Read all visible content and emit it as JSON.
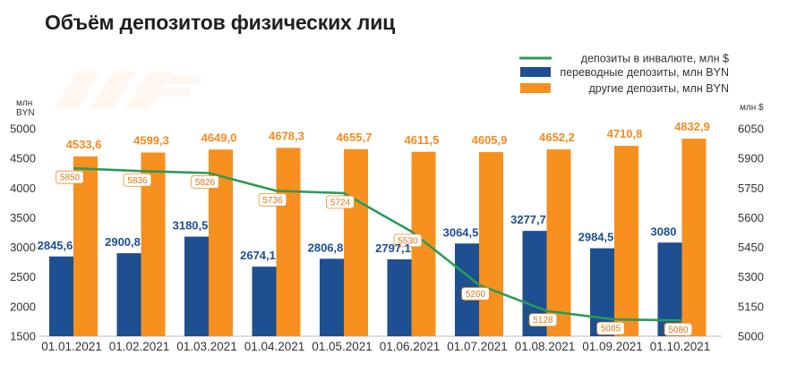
{
  "chart_data": {
    "type": "bar",
    "title": "Объём депозитов физических лиц",
    "categories": [
      "01.01.2021",
      "01.02.2021",
      "01.03.2021",
      "01.04.2021",
      "01.05.2021",
      "01.06.2021",
      "01.07.2021",
      "01.08.2021",
      "01.09.2021",
      "01.10.2021"
    ],
    "left_axis": {
      "unit": "млн BYN",
      "ylim": [
        1500,
        5000
      ],
      "ticks": [
        1500,
        2000,
        2500,
        3000,
        3500,
        4000,
        4500,
        5000
      ]
    },
    "right_axis": {
      "unit": "млн $",
      "ylim": [
        5000,
        6050
      ],
      "ticks": [
        5000,
        5150,
        5300,
        5450,
        5600,
        5750,
        5900,
        6050
      ]
    },
    "series": [
      {
        "name": "переводные депозиты, млн BYN",
        "kind": "bar",
        "axis": "left",
        "color": "#1d4f91",
        "values": [
          2845.6,
          2900.8,
          3180.5,
          2674.1,
          2806.8,
          2797.1,
          3064.5,
          3277.7,
          2984.5,
          3080
        ],
        "labels": [
          "2845,6",
          "2900,8",
          "3180,5",
          "2674,1",
          "2806,8",
          "2797,1",
          "3064,5",
          "3277,7",
          "2984,5",
          "3080"
        ]
      },
      {
        "name": "другие депозиты, млн BYN",
        "kind": "bar",
        "axis": "left",
        "color": "#f7901e",
        "values": [
          4533.6,
          4599.3,
          4649.0,
          4678.3,
          4655.7,
          4611.5,
          4605.9,
          4652.2,
          4710.8,
          4832.9
        ],
        "labels": [
          "4533,6",
          "4599,3",
          "4649,0",
          "4678,3",
          "4655,7",
          "4611,5",
          "4605,9",
          "4652,2",
          "4710,8",
          "4832,9"
        ]
      },
      {
        "name": "депозиты в инвалюте, млн $",
        "kind": "line",
        "axis": "right",
        "color": "#2a9a5a",
        "values": [
          5850,
          5836,
          5826,
          5736,
          5724,
          5530,
          5260,
          5128,
          5085,
          5080
        ],
        "labels": [
          "5850",
          "5836",
          "5826",
          "5736",
          "5724",
          "5530",
          "5260",
          "5128",
          "5085",
          "5080"
        ]
      }
    ],
    "legend_position": "top-right",
    "grid": false
  }
}
